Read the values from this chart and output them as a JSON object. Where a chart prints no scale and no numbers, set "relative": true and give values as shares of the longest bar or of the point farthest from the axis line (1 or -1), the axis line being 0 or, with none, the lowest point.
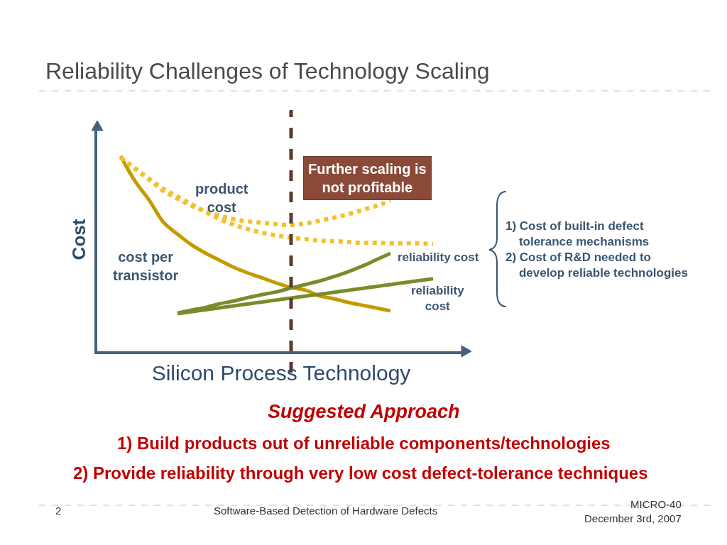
{
  "chart_data": {
    "type": "line",
    "relative": true,
    "title": "Reliability Challenges of Technology Scaling",
    "xlabel": "Silicon Process Technology",
    "ylabel": "Cost",
    "categories": [
      null,
      null,
      null,
      null,
      null,
      null,
      null,
      null,
      null,
      null,
      null,
      null,
      null,
      null,
      null,
      null,
      null,
      null,
      null,
      null,
      null,
      null,
      null
    ],
    "series": [
      {
        "name": "cost per transistor",
        "color": "#c49a00",
        "line_style": "solid",
        "values": [
          1.0,
          0.873,
          0.775,
          0.662,
          0.6,
          0.545,
          0.502,
          0.465,
          0.429,
          0.4,
          0.375,
          0.349,
          0.327,
          0.313,
          0.284,
          0.269,
          0.251,
          0.236,
          0.222,
          0.207,
          null,
          null,
          null
        ]
      },
      {
        "name": "product cost",
        "color": "#f2c12e",
        "line_style": "dotted",
        "values": [
          0.993,
          0.935,
          0.88,
          0.822,
          0.782,
          0.745,
          0.716,
          0.695,
          0.676,
          0.665,
          0.658,
          0.651,
          0.647,
          0.655,
          0.669,
          0.684,
          0.702,
          0.724,
          0.745,
          0.771,
          null,
          null,
          null
        ]
      },
      {
        "color": "#f2c12e",
        "line_style": "dotted",
        "values": [
          0.993,
          0.938,
          0.884,
          0.833,
          0.793,
          0.753,
          0.713,
          0.676,
          0.647,
          0.625,
          0.607,
          0.593,
          0.582,
          0.575,
          0.567,
          0.564,
          0.56,
          0.556,
          0.556,
          0.553,
          0.553,
          0.553,
          0.549
        ]
      },
      {
        "name": "reliability cost",
        "color": "#7a8c2a",
        "line_style": "solid",
        "values": [
          null,
          null,
          null,
          null,
          0.196,
          0.211,
          0.225,
          0.244,
          0.258,
          0.276,
          0.291,
          0.305,
          0.324,
          0.342,
          0.36,
          0.382,
          0.407,
          0.436,
          0.469,
          0.502,
          null,
          null,
          null
        ]
      },
      {
        "name": "reliability cost",
        "color": "#7a8c2a",
        "line_style": "solid",
        "values": [
          null,
          null,
          null,
          null,
          0.193,
          0.203,
          0.213,
          0.223,
          0.233,
          0.243,
          0.253,
          0.263,
          0.273,
          0.283,
          0.292,
          0.302,
          0.312,
          0.322,
          0.332,
          0.342,
          0.352,
          0.362,
          0.372
        ]
      }
    ],
    "annotations": [
      "Further scaling is not profitable",
      "1) Cost of built-in defect\n    tolerance mechanisms\n2) Cost of R&D needed to\n    develop reliable technologies",
      "Suggested Approach",
      "1) Build products out of unreliable components/technologies",
      "2) Provide reliability through very low cost defect-tolerance techniques",
      "2",
      "Software-Based Detection of Hardware Defects",
      "MICRO-40\nDecember 3rd, 2007"
    ],
    "legend": false,
    "marker": "none"
  }
}
